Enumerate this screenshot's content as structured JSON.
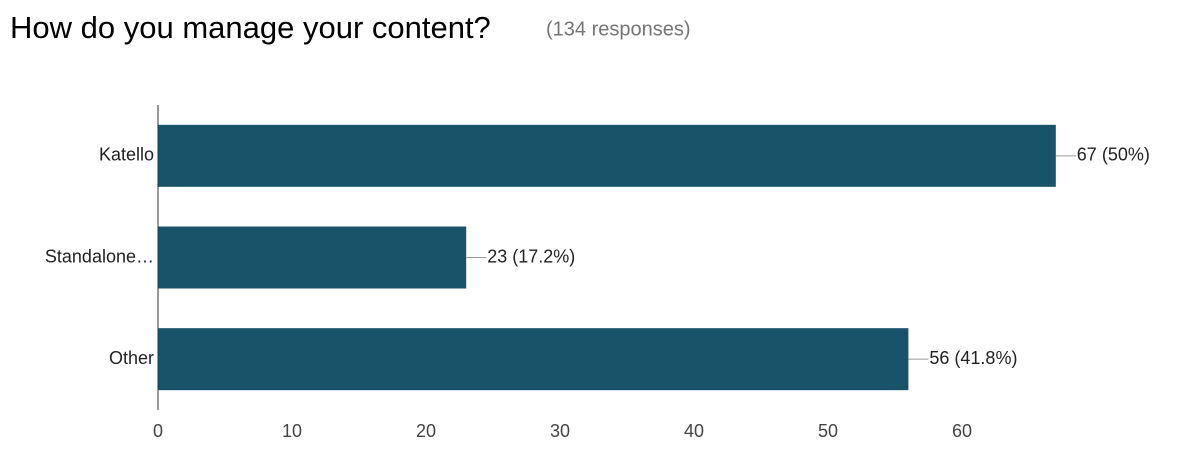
{
  "chart_data": {
    "type": "bar",
    "orientation": "horizontal",
    "title": "How do you manage your content?",
    "subtitle": "(134 responses)",
    "categories": [
      "Katello",
      "Standalone…",
      "Other"
    ],
    "values": [
      67,
      23,
      56
    ],
    "value_labels": [
      "67 (50%)",
      "23 (17.2%)",
      "56 (41.8%)"
    ],
    "color": "#18536a",
    "xlim": [
      0,
      70
    ],
    "xticks": [
      0,
      10,
      20,
      30,
      40,
      50,
      60
    ]
  }
}
